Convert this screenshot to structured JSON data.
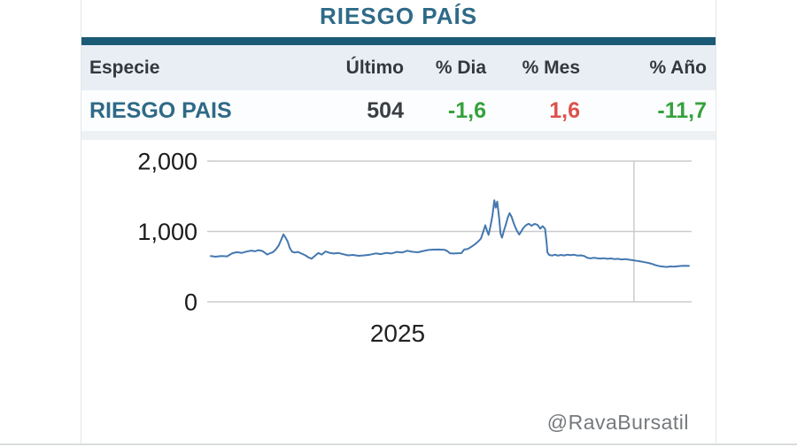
{
  "header": {
    "title": "RIESGO PAÍS"
  },
  "table": {
    "headers": {
      "especie": "Especie",
      "ultimo": "Último",
      "dia": "% Dia",
      "mes": "% Mes",
      "anio": "% Año"
    },
    "row": {
      "especie": "RIESGO PAIS",
      "ultimo": {
        "text": "504",
        "tone": "dark"
      },
      "dia": {
        "text": "-1,6",
        "tone": "green"
      },
      "mes": {
        "text": "1,6",
        "tone": "red"
      },
      "anio": {
        "text": "-11,7",
        "tone": "green"
      }
    }
  },
  "attribution": "@RavaBursatil",
  "theme": {
    "accent": "#2e6a87",
    "bar": "#1b5a74",
    "header_bg": "#e9eef4",
    "row_bg": "#fcfdfe",
    "strip": "#eef1f3",
    "green": "#36a13c",
    "red": "#dc524c",
    "grid": "#c9cbcd",
    "text_dark": "#33383c",
    "num_dark": "#3a3f44",
    "muted": "#76797c",
    "border": "#e4e6e8",
    "rule": "#d9dcde"
  },
  "chart_data": {
    "type": "line",
    "title": "",
    "xlabel": "",
    "ylabel": "",
    "grid": true,
    "legend": "none",
    "x_axis": {
      "label": "2025",
      "label_position_frac": 0.393
    },
    "y_axis": {
      "range": [
        0,
        2000
      ],
      "ticks": [
        {
          "value": 0,
          "label": "0"
        },
        {
          "value": 1000,
          "label": "1,000"
        },
        {
          "value": 2000,
          "label": "2,000"
        }
      ]
    },
    "vertical_gridline_frac": 0.881,
    "series": [
      {
        "name": "RIESGO PAIS",
        "color": "#4478af",
        "last_value": 504,
        "points": [
          [
            0.0,
            650
          ],
          [
            0.01,
            641
          ],
          [
            0.022,
            652
          ],
          [
            0.034,
            647
          ],
          [
            0.045,
            690
          ],
          [
            0.055,
            706
          ],
          [
            0.065,
            696
          ],
          [
            0.075,
            714
          ],
          [
            0.085,
            728
          ],
          [
            0.092,
            718
          ],
          [
            0.1,
            734
          ],
          [
            0.108,
            722
          ],
          [
            0.113,
            698
          ],
          [
            0.118,
            672
          ],
          [
            0.124,
            690
          ],
          [
            0.13,
            706
          ],
          [
            0.136,
            744
          ],
          [
            0.142,
            800
          ],
          [
            0.147,
            878
          ],
          [
            0.152,
            958
          ],
          [
            0.156,
            918
          ],
          [
            0.161,
            855
          ],
          [
            0.165,
            768
          ],
          [
            0.17,
            712
          ],
          [
            0.176,
            700
          ],
          [
            0.182,
            710
          ],
          [
            0.19,
            686
          ],
          [
            0.198,
            660
          ],
          [
            0.205,
            628
          ],
          [
            0.211,
            614
          ],
          [
            0.218,
            654
          ],
          [
            0.225,
            694
          ],
          [
            0.232,
            672
          ],
          [
            0.24,
            716
          ],
          [
            0.248,
            697
          ],
          [
            0.257,
            687
          ],
          [
            0.267,
            694
          ],
          [
            0.277,
            677
          ],
          [
            0.287,
            661
          ],
          [
            0.297,
            667
          ],
          [
            0.309,
            654
          ],
          [
            0.321,
            661
          ],
          [
            0.333,
            671
          ],
          [
            0.345,
            688
          ],
          [
            0.356,
            678
          ],
          [
            0.367,
            696
          ],
          [
            0.378,
            687
          ],
          [
            0.389,
            710
          ],
          [
            0.4,
            701
          ],
          [
            0.411,
            726
          ],
          [
            0.422,
            711
          ],
          [
            0.433,
            704
          ],
          [
            0.444,
            722
          ],
          [
            0.455,
            737
          ],
          [
            0.465,
            742
          ],
          [
            0.477,
            744
          ],
          [
            0.489,
            740
          ],
          [
            0.495,
            720
          ],
          [
            0.5,
            691
          ],
          [
            0.508,
            687
          ],
          [
            0.516,
            690
          ],
          [
            0.524,
            692
          ],
          [
            0.53,
            744
          ],
          [
            0.538,
            752
          ],
          [
            0.546,
            788
          ],
          [
            0.553,
            820
          ],
          [
            0.559,
            856
          ],
          [
            0.565,
            900
          ],
          [
            0.57,
            1000
          ],
          [
            0.574,
            1088
          ],
          [
            0.578,
            1008
          ],
          [
            0.581,
            952
          ],
          [
            0.585,
            1078
          ],
          [
            0.589,
            1228
          ],
          [
            0.593,
            1444
          ],
          [
            0.596,
            1338
          ],
          [
            0.599,
            1424
          ],
          [
            0.603,
            1196
          ],
          [
            0.606,
            972
          ],
          [
            0.609,
            912
          ],
          [
            0.613,
            1010
          ],
          [
            0.617,
            1098
          ],
          [
            0.621,
            1194
          ],
          [
            0.625,
            1260
          ],
          [
            0.629,
            1208
          ],
          [
            0.633,
            1128
          ],
          [
            0.637,
            1058
          ],
          [
            0.641,
            1002
          ],
          [
            0.645,
            956
          ],
          [
            0.649,
            998
          ],
          [
            0.653,
            1044
          ],
          [
            0.659,
            1088
          ],
          [
            0.665,
            1110
          ],
          [
            0.671,
            1080
          ],
          [
            0.677,
            1108
          ],
          [
            0.683,
            1096
          ],
          [
            0.689,
            1040
          ],
          [
            0.694,
            1076
          ],
          [
            0.699,
            1038
          ],
          [
            0.702,
            860
          ],
          [
            0.704,
            700
          ],
          [
            0.708,
            666
          ],
          [
            0.714,
            658
          ],
          [
            0.72,
            670
          ],
          [
            0.726,
            657
          ],
          [
            0.732,
            667
          ],
          [
            0.739,
            659
          ],
          [
            0.746,
            671
          ],
          [
            0.753,
            664
          ],
          [
            0.76,
            669
          ],
          [
            0.767,
            657
          ],
          [
            0.774,
            661
          ],
          [
            0.781,
            651
          ],
          [
            0.788,
            624
          ],
          [
            0.795,
            617
          ],
          [
            0.801,
            627
          ],
          [
            0.808,
            620
          ],
          [
            0.815,
            615
          ],
          [
            0.822,
            620
          ],
          [
            0.829,
            611
          ],
          [
            0.837,
            616
          ],
          [
            0.844,
            607
          ],
          [
            0.851,
            611
          ],
          [
            0.859,
            603
          ],
          [
            0.867,
            607
          ],
          [
            0.875,
            599
          ],
          [
            0.883,
            591
          ],
          [
            0.891,
            583
          ],
          [
            0.899,
            574
          ],
          [
            0.907,
            564
          ],
          [
            0.915,
            553
          ],
          [
            0.923,
            538
          ],
          [
            0.931,
            520
          ],
          [
            0.939,
            506
          ],
          [
            0.947,
            499
          ],
          [
            0.954,
            496
          ],
          [
            0.961,
            503
          ],
          [
            0.968,
            499
          ],
          [
            0.975,
            505
          ],
          [
            0.982,
            509
          ],
          [
            0.99,
            513
          ],
          [
            1.0,
            511
          ]
        ]
      }
    ]
  }
}
